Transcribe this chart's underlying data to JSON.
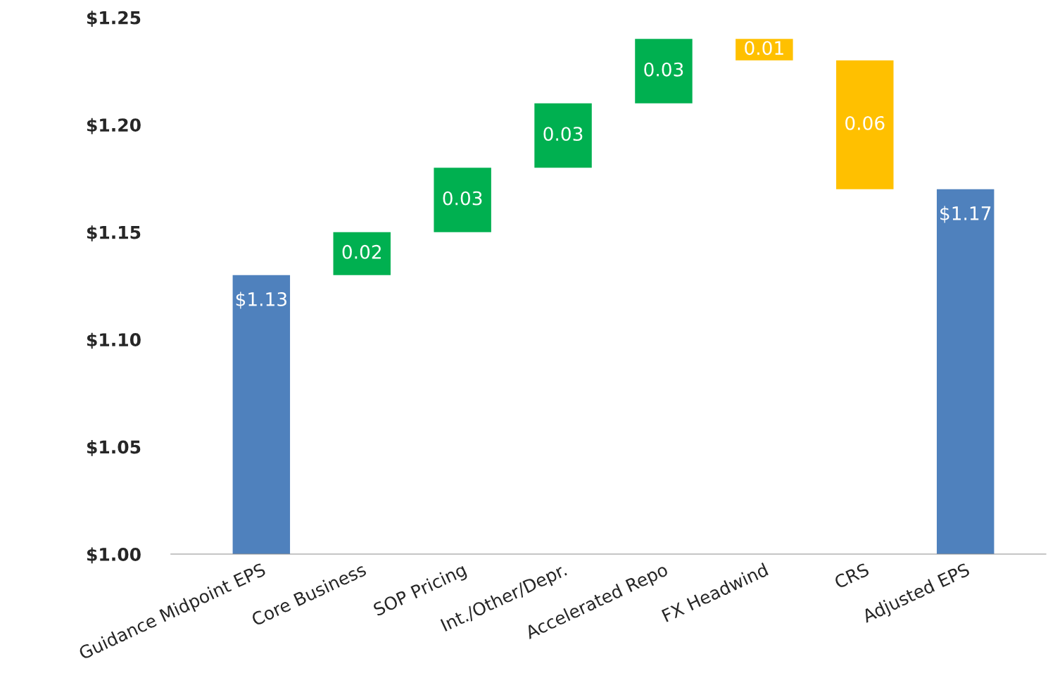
{
  "chart_data": {
    "type": "bar",
    "categories": [
      "Guidance Midpoint EPS",
      "Core Business",
      "SOP Pricing",
      "Int./Other/Depr.",
      "Accelerated Repo",
      "FX Headwind",
      "CRS",
      "Adjusted EPS"
    ],
    "values": [
      1.13,
      0.02,
      0.03,
      0.03,
      0.03,
      -0.01,
      -0.06,
      1.17
    ],
    "base": [
      null,
      1.13,
      1.15,
      1.18,
      1.21,
      1.24,
      1.23,
      null
    ],
    "colors": [
      "#4f81bd",
      "#00b050",
      "#00b050",
      "#00b050",
      "#00b050",
      "#ffc000",
      "#ffc000",
      "#4f81bd"
    ],
    "value_labels": [
      "$1.13",
      "0.02",
      "0.03",
      "0.03",
      "0.03",
      "0.01",
      "0.06",
      "$1.17"
    ],
    "ylim": [
      1.0,
      1.25
    ],
    "yticks": [
      {
        "value": 1.0,
        "label": "$1.00"
      },
      {
        "value": 1.05,
        "label": "$1.05"
      },
      {
        "value": 1.1,
        "label": "$1.10"
      },
      {
        "value": 1.15,
        "label": "$1.15"
      },
      {
        "value": 1.2,
        "label": "$1.20"
      },
      {
        "value": 1.25,
        "label": "$1.25"
      }
    ],
    "grid": false,
    "legend": false
  }
}
